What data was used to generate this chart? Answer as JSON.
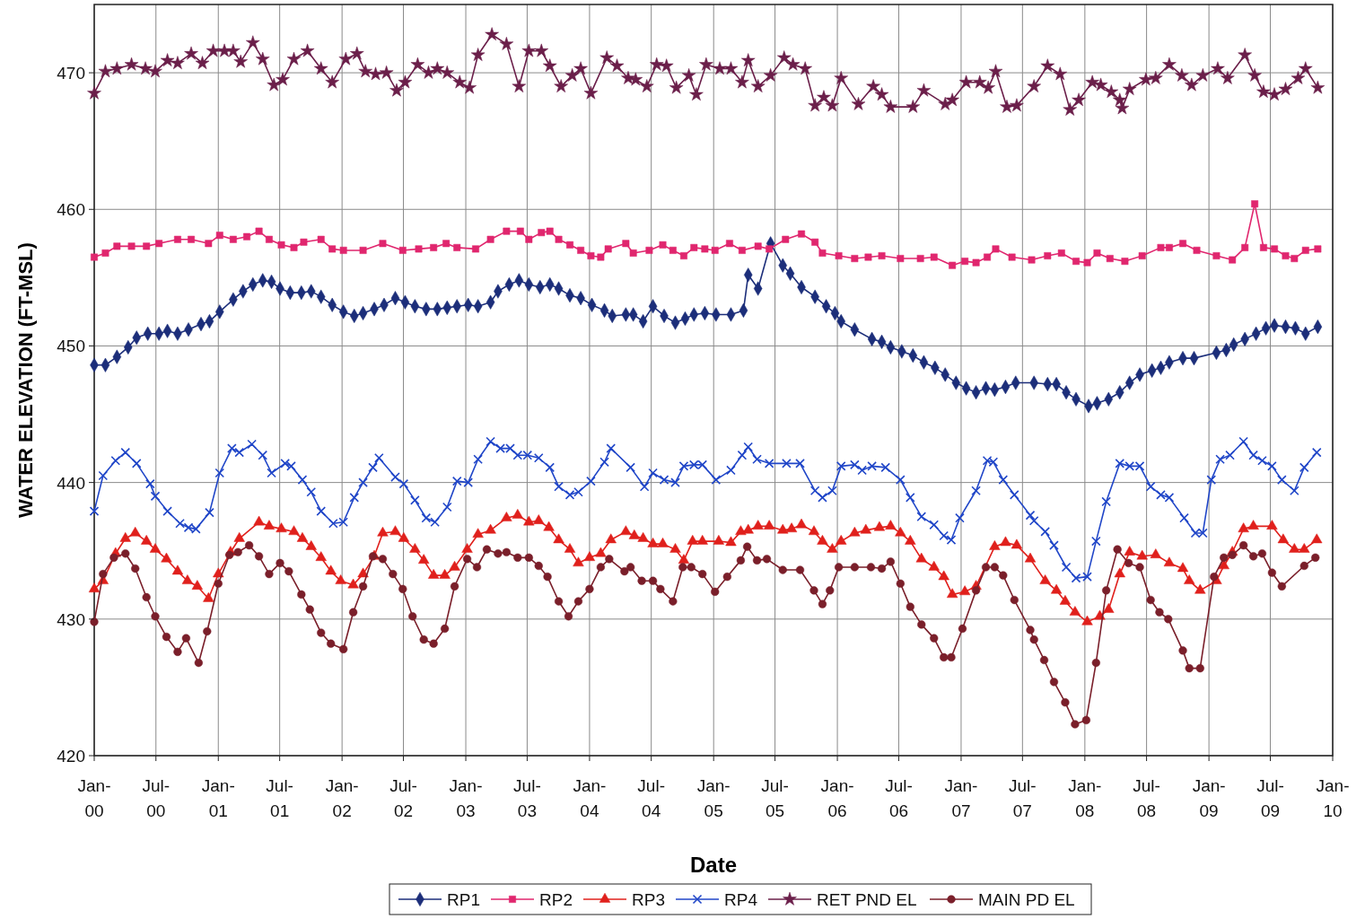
{
  "chart_data": {
    "type": "line",
    "xlabel": "Date",
    "ylabel": "WATER ELEVATION (FT-MSL)",
    "xlim": [
      "2000-01-01",
      "2010-01-01"
    ],
    "ylim": [
      420,
      475
    ],
    "xticks": [
      {
        "value": "2000-01-01",
        "label": "Jan-00"
      },
      {
        "value": "2000-07-01",
        "label": "Jul-00"
      },
      {
        "value": "2001-01-01",
        "label": "Jan-01"
      },
      {
        "value": "2001-07-01",
        "label": "Jul-01"
      },
      {
        "value": "2002-01-01",
        "label": "Jan-02"
      },
      {
        "value": "2002-07-01",
        "label": "Jul-02"
      },
      {
        "value": "2003-01-01",
        "label": "Jan-03"
      },
      {
        "value": "2003-07-01",
        "label": "Jul-03"
      },
      {
        "value": "2004-01-01",
        "label": "Jan-04"
      },
      {
        "value": "2004-07-01",
        "label": "Jul-04"
      },
      {
        "value": "2005-01-01",
        "label": "Jan-05"
      },
      {
        "value": "2005-07-01",
        "label": "Jul-05"
      },
      {
        "value": "2006-01-01",
        "label": "Jan-06"
      },
      {
        "value": "2006-07-01",
        "label": "Jul-06"
      },
      {
        "value": "2007-01-01",
        "label": "Jan-07"
      },
      {
        "value": "2007-07-01",
        "label": "Jul-07"
      },
      {
        "value": "2008-01-01",
        "label": "Jan-08"
      },
      {
        "value": "2008-07-01",
        "label": "Jul-08"
      },
      {
        "value": "2009-01-01",
        "label": "Jan-09"
      },
      {
        "value": "2009-07-01",
        "label": "Jul-09"
      },
      {
        "value": "2010-01-01",
        "label": "Jan-10"
      }
    ],
    "yticks": [
      420,
      430,
      440,
      450,
      460,
      470
    ],
    "grid": true,
    "legend": "bottom",
    "line_style": "solid",
    "series": [
      {
        "name": "RP1",
        "color": "#1c2e7a",
        "marker": "diamond",
        "x": [
          "2000-01-01",
          "2000-02-03",
          "2000-03-08",
          "2000-04-10",
          "2000-05-05",
          "2000-06-07",
          "2000-07-10",
          "2000-08-04",
          "2000-09-03",
          "2000-10-05",
          "2000-11-11",
          "2000-12-06",
          "2001-01-05",
          "2001-02-14",
          "2001-03-15",
          "2001-04-13",
          "2001-05-12",
          "2001-06-07",
          "2001-07-02",
          "2001-08-01",
          "2001-09-03",
          "2001-10-02",
          "2001-10-31",
          "2001-12-03",
          "2002-01-05",
          "2002-02-06",
          "2002-03-04",
          "2002-04-06",
          "2002-05-05",
          "2002-06-07",
          "2002-07-06",
          "2002-08-04",
          "2002-09-06",
          "2002-10-09",
          "2002-11-07",
          "2002-12-06",
          "2003-01-08",
          "2003-02-06",
          "2003-03-15",
          "2003-04-06",
          "2003-05-09",
          "2003-06-07",
          "2003-07-06",
          "2003-08-08",
          "2003-09-06",
          "2003-10-02",
          "2003-11-04",
          "2003-12-06",
          "2004-01-08",
          "2004-02-14",
          "2004-03-08",
          "2004-04-17",
          "2004-05-09",
          "2004-06-07",
          "2004-07-06",
          "2004-08-08",
          "2004-09-10",
          "2004-10-09",
          "2004-11-04",
          "2004-12-06",
          "2005-01-08",
          "2005-02-21",
          "2005-03-30",
          "2005-04-13",
          "2005-05-12",
          "2005-06-18",
          "2005-07-24",
          "2005-08-15",
          "2005-09-17",
          "2005-10-27",
          "2005-11-29",
          "2005-12-25",
          "2006-01-12",
          "2006-02-21",
          "2006-04-13",
          "2006-05-12",
          "2006-06-07",
          "2006-07-10",
          "2006-08-12",
          "2006-09-13",
          "2006-10-16",
          "2006-11-15",
          "2006-12-17",
          "2007-01-16",
          "2007-02-14",
          "2007-03-15",
          "2007-04-10",
          "2007-05-12",
          "2007-06-11",
          "2007-08-04",
          "2007-09-13",
          "2007-10-09",
          "2007-11-07",
          "2007-12-06",
          "2008-01-12",
          "2008-02-06",
          "2008-03-11",
          "2008-04-13",
          "2008-05-12",
          "2008-06-11",
          "2008-07-17",
          "2008-08-12",
          "2008-09-06",
          "2008-10-16",
          "2008-11-18",
          "2009-01-23",
          "2009-02-21",
          "2009-03-15",
          "2009-04-17",
          "2009-05-20",
          "2009-06-18",
          "2009-07-13",
          "2009-08-15",
          "2009-09-13",
          "2009-10-13",
          "2009-11-18"
        ],
        "values": [
          448.6,
          448.6,
          449.2,
          449.9,
          450.6,
          450.9,
          450.9,
          451.1,
          450.9,
          451.2,
          451.6,
          451.8,
          452.5,
          453.4,
          454.0,
          454.5,
          454.8,
          454.7,
          454.2,
          453.9,
          453.9,
          454.0,
          453.6,
          453.0,
          452.5,
          452.2,
          452.4,
          452.7,
          453.0,
          453.5,
          453.2,
          452.9,
          452.7,
          452.7,
          452.8,
          452.9,
          453.0,
          452.9,
          453.2,
          454.0,
          454.5,
          454.8,
          454.5,
          454.3,
          454.5,
          454.2,
          453.7,
          453.5,
          453.0,
          452.6,
          452.2,
          452.3,
          452.3,
          451.8,
          452.9,
          452.2,
          451.7,
          452.0,
          452.3,
          452.4,
          452.3,
          452.3,
          452.6,
          455.2,
          454.2,
          457.5,
          455.9,
          455.3,
          454.3,
          453.6,
          452.9,
          452.4,
          451.8,
          451.2,
          450.5,
          450.3,
          449.9,
          449.6,
          449.3,
          448.8,
          448.4,
          447.9,
          447.3,
          446.9,
          446.6,
          446.9,
          446.8,
          447.0,
          447.3,
          447.3,
          447.2,
          447.2,
          446.6,
          446.1,
          445.6,
          445.8,
          446.1,
          446.6,
          447.3,
          447.9,
          448.2,
          448.4,
          448.8,
          449.1,
          449.1,
          449.5,
          449.7,
          450.1,
          450.5,
          450.9,
          451.3,
          451.5,
          451.4,
          451.3,
          450.9,
          451.4
        ]
      },
      {
        "name": "RP2",
        "color": "#e0266e",
        "marker": "square",
        "x": [
          "2000-01-01",
          "2000-02-03",
          "2000-03-08",
          "2000-04-20",
          "2000-06-03",
          "2000-07-10",
          "2000-09-03",
          "2000-10-13",
          "2000-12-03",
          "2001-01-05",
          "2001-02-14",
          "2001-03-26",
          "2001-05-01",
          "2001-05-31",
          "2001-07-06",
          "2001-08-12",
          "2001-09-10",
          "2001-10-31",
          "2001-12-03",
          "2002-01-05",
          "2002-03-04",
          "2002-05-01",
          "2002-06-29",
          "2002-08-15",
          "2002-09-28",
          "2002-11-04",
          "2002-12-06",
          "2003-01-30",
          "2003-03-15",
          "2003-05-01",
          "2003-06-11",
          "2003-07-06",
          "2003-08-12",
          "2003-09-06",
          "2003-10-02",
          "2003-11-04",
          "2003-12-06",
          "2004-01-05",
          "2004-02-03",
          "2004-02-25",
          "2004-04-17",
          "2004-05-09",
          "2004-06-25",
          "2004-08-04",
          "2004-09-03",
          "2004-10-05",
          "2004-11-04",
          "2004-12-06",
          "2005-01-05",
          "2005-02-17",
          "2005-03-26",
          "2005-05-12",
          "2005-06-14",
          "2005-08-01",
          "2005-09-17",
          "2005-10-27",
          "2005-11-18",
          "2006-01-05",
          "2006-02-21",
          "2006-04-02",
          "2006-05-12",
          "2006-07-06",
          "2006-09-03",
          "2006-10-13",
          "2006-12-06",
          "2007-01-12",
          "2007-02-14",
          "2007-03-19",
          "2007-04-13",
          "2007-05-31",
          "2007-07-28",
          "2007-09-13",
          "2007-10-24",
          "2007-12-06",
          "2008-01-08",
          "2008-02-06",
          "2008-03-15",
          "2008-04-28",
          "2008-06-18",
          "2008-08-12",
          "2008-09-06",
          "2008-10-16",
          "2008-11-26",
          "2009-01-23",
          "2009-03-11",
          "2009-04-17",
          "2009-05-16",
          "2009-06-11",
          "2009-07-13",
          "2009-08-15",
          "2009-09-10",
          "2009-10-13",
          "2009-11-18"
        ],
        "values": [
          456.5,
          456.8,
          457.3,
          457.3,
          457.3,
          457.5,
          457.8,
          457.8,
          457.5,
          458.1,
          457.8,
          458.0,
          458.4,
          457.8,
          457.4,
          457.2,
          457.6,
          457.8,
          457.1,
          457.0,
          457.0,
          457.5,
          457.0,
          457.1,
          457.2,
          457.5,
          457.2,
          457.1,
          457.8,
          458.4,
          458.4,
          457.8,
          458.3,
          458.4,
          457.8,
          457.4,
          457.0,
          456.6,
          456.5,
          457.1,
          457.5,
          456.8,
          457.0,
          457.4,
          457.0,
          456.6,
          457.2,
          457.1,
          457.0,
          457.5,
          457.0,
          457.3,
          457.1,
          457.8,
          458.2,
          457.6,
          456.8,
          456.6,
          456.4,
          456.5,
          456.6,
          456.4,
          456.4,
          456.5,
          455.9,
          456.2,
          456.1,
          456.5,
          457.1,
          456.5,
          456.3,
          456.6,
          456.8,
          456.2,
          456.1,
          456.8,
          456.4,
          456.2,
          456.6,
          457.2,
          457.2,
          457.5,
          457.0,
          456.6,
          456.3,
          457.2,
          460.4,
          457.2,
          457.1,
          456.6,
          456.4,
          457.0,
          457.1
        ]
      },
      {
        "name": "RP3",
        "color": "#e0201c",
        "marker": "triangle",
        "x": [
          "2000-01-01",
          "2000-01-27",
          "2000-03-04",
          "2000-04-02",
          "2000-05-01",
          "2000-06-03",
          "2000-06-29",
          "2000-08-01",
          "2000-09-03",
          "2000-10-02",
          "2000-10-31",
          "2000-12-03",
          "2001-01-01",
          "2001-02-06",
          "2001-03-04",
          "2001-05-01",
          "2001-05-31",
          "2001-07-06",
          "2001-08-12",
          "2001-09-06",
          "2001-10-02",
          "2001-10-31",
          "2001-11-29",
          "2001-12-28",
          "2002-02-03",
          "2002-03-04",
          "2002-04-06",
          "2002-05-01",
          "2002-06-07",
          "2002-07-02",
          "2002-08-04",
          "2002-08-30",
          "2002-09-28",
          "2002-10-31",
          "2002-11-29",
          "2003-01-05",
          "2003-02-06",
          "2003-03-15",
          "2003-05-01",
          "2003-06-03",
          "2003-07-06",
          "2003-08-04",
          "2003-09-03",
          "2003-10-02",
          "2003-11-04",
          "2003-11-29",
          "2004-01-01",
          "2004-02-03",
          "2004-03-04",
          "2004-04-17",
          "2004-05-12",
          "2004-06-07",
          "2004-07-06",
          "2004-08-04",
          "2004-09-10",
          "2004-10-05",
          "2004-10-31",
          "2004-11-29",
          "2005-01-16",
          "2005-02-21",
          "2005-03-22",
          "2005-04-13",
          "2005-05-12",
          "2005-06-14",
          "2005-07-24",
          "2005-08-19",
          "2005-09-17",
          "2005-10-24",
          "2005-11-18",
          "2005-12-17",
          "2006-01-12",
          "2006-02-21",
          "2006-03-26",
          "2006-05-05",
          "2006-06-07",
          "2006-07-06",
          "2006-08-04",
          "2006-09-06",
          "2006-10-13",
          "2006-11-11",
          "2006-12-06",
          "2007-01-12",
          "2007-02-14",
          "2007-04-10",
          "2007-05-12",
          "2007-06-14",
          "2007-07-24",
          "2007-09-06",
          "2007-10-09",
          "2007-11-04",
          "2007-12-03",
          "2008-01-08",
          "2008-02-14",
          "2008-03-11",
          "2008-04-13",
          "2008-05-12",
          "2008-06-18",
          "2008-07-28",
          "2008-09-06",
          "2008-10-16",
          "2008-11-04",
          "2008-12-06",
          "2009-01-23",
          "2009-02-14",
          "2009-03-11",
          "2009-04-13",
          "2009-05-12",
          "2009-07-06",
          "2009-08-08",
          "2009-09-10",
          "2009-10-09",
          "2009-11-15"
        ],
        "values": [
          432.2,
          432.8,
          434.8,
          435.9,
          436.3,
          435.7,
          435.1,
          434.4,
          433.5,
          432.8,
          432.4,
          431.5,
          433.3,
          434.9,
          435.9,
          437.1,
          436.8,
          436.6,
          436.4,
          435.9,
          435.3,
          434.5,
          433.5,
          432.8,
          432.5,
          433.3,
          434.6,
          436.3,
          436.4,
          435.9,
          435.1,
          434.3,
          433.2,
          433.2,
          433.8,
          435.1,
          436.2,
          436.5,
          437.4,
          437.6,
          437.1,
          437.2,
          436.7,
          435.8,
          435.1,
          434.1,
          434.5,
          434.8,
          435.8,
          436.4,
          436.1,
          435.9,
          435.5,
          435.5,
          435.1,
          434.3,
          435.7,
          435.7,
          435.7,
          435.6,
          436.4,
          436.5,
          436.8,
          436.8,
          436.5,
          436.6,
          436.9,
          436.4,
          435.7,
          435.1,
          435.7,
          436.3,
          436.5,
          436.7,
          436.8,
          436.3,
          435.7,
          434.4,
          433.8,
          433.1,
          431.8,
          432.0,
          432.4,
          435.3,
          435.6,
          435.4,
          434.4,
          432.8,
          432.1,
          431.3,
          430.5,
          429.8,
          430.2,
          430.7,
          433.3,
          434.9,
          434.6,
          434.7,
          434.1,
          433.7,
          432.8,
          432.1,
          432.8,
          433.9,
          434.9,
          436.6,
          436.8,
          436.8,
          435.8,
          435.1,
          435.1,
          435.8
        ]
      },
      {
        "name": "RP4",
        "color": "#2046c8",
        "marker": "cross",
        "x": [
          "2000-01-01",
          "2000-01-27",
          "2000-03-04",
          "2000-04-02",
          "2000-05-05",
          "2000-06-14",
          "2000-06-29",
          "2000-08-04",
          "2000-09-10",
          "2000-10-05",
          "2000-10-27",
          "2000-12-06",
          "2001-01-05",
          "2001-02-10",
          "2001-03-04",
          "2001-04-10",
          "2001-05-12",
          "2001-06-07",
          "2001-07-17",
          "2001-08-04",
          "2001-09-06",
          "2001-10-02",
          "2001-10-31",
          "2001-12-06",
          "2002-01-05",
          "2002-02-06",
          "2002-03-04",
          "2002-04-02",
          "2002-04-20",
          "2002-06-07",
          "2002-07-02",
          "2002-08-04",
          "2002-09-06",
          "2002-10-02",
          "2002-11-07",
          "2002-12-06",
          "2003-01-08",
          "2003-02-06",
          "2003-03-15",
          "2003-04-13",
          "2003-05-12",
          "2003-06-03",
          "2003-07-02",
          "2003-08-04",
          "2003-09-06",
          "2003-10-02",
          "2003-11-04",
          "2003-11-29",
          "2004-01-05",
          "2004-02-14",
          "2004-03-04",
          "2004-05-01",
          "2004-06-11",
          "2004-07-06",
          "2004-08-08",
          "2004-09-10",
          "2004-10-05",
          "2004-11-04",
          "2004-11-29",
          "2005-01-08",
          "2005-02-21",
          "2005-03-26",
          "2005-04-13",
          "2005-05-09",
          "2005-06-14",
          "2005-08-04",
          "2005-09-13",
          "2005-10-27",
          "2005-11-18",
          "2005-12-17",
          "2006-01-12",
          "2006-02-21",
          "2006-03-15",
          "2006-04-13",
          "2006-05-23",
          "2006-07-06",
          "2006-08-04",
          "2006-09-06",
          "2006-10-13",
          "2006-11-11",
          "2006-12-03",
          "2006-12-28",
          "2007-02-14",
          "2007-03-19",
          "2007-04-06",
          "2007-05-05",
          "2007-06-07",
          "2007-07-24",
          "2007-08-04",
          "2007-09-06",
          "2007-10-02",
          "2007-11-07",
          "2007-12-06",
          "2008-01-08",
          "2008-02-03",
          "2008-03-04",
          "2008-04-13",
          "2008-05-12",
          "2008-06-11",
          "2008-07-13",
          "2008-08-12",
          "2008-09-06",
          "2008-10-20",
          "2008-11-22",
          "2008-12-14",
          "2009-01-08",
          "2009-02-03",
          "2009-03-04",
          "2009-04-13",
          "2009-05-12",
          "2009-06-07",
          "2009-07-06",
          "2009-08-04",
          "2009-09-10",
          "2009-10-09",
          "2009-11-15"
        ],
        "values": [
          437.9,
          440.5,
          441.6,
          442.2,
          441.4,
          439.9,
          439.0,
          437.9,
          437.0,
          436.7,
          436.6,
          437.8,
          440.7,
          442.5,
          442.2,
          442.8,
          442.0,
          440.7,
          441.4,
          441.2,
          440.2,
          439.3,
          437.9,
          437.0,
          437.1,
          438.9,
          440.0,
          441.1,
          441.8,
          440.4,
          439.9,
          438.7,
          437.4,
          437.1,
          438.2,
          440.1,
          440.0,
          441.7,
          443.0,
          442.5,
          442.5,
          442.0,
          442.0,
          441.8,
          441.1,
          439.7,
          439.1,
          439.3,
          440.1,
          441.5,
          442.5,
          441.1,
          439.7,
          440.7,
          440.2,
          440.0,
          441.2,
          441.3,
          441.3,
          440.2,
          440.9,
          442.0,
          442.6,
          441.7,
          441.4,
          441.4,
          441.4,
          439.4,
          438.9,
          439.4,
          441.2,
          441.3,
          440.9,
          441.2,
          441.1,
          440.2,
          438.9,
          437.5,
          436.9,
          436.1,
          435.8,
          437.4,
          439.4,
          441.6,
          441.5,
          440.2,
          439.1,
          437.6,
          437.2,
          436.4,
          435.4,
          433.8,
          433.0,
          433.1,
          435.7,
          438.6,
          441.4,
          441.2,
          441.2,
          439.7,
          439.1,
          438.9,
          437.4,
          436.3,
          436.3,
          440.2,
          441.7,
          442.0,
          443.0,
          442.0,
          441.6,
          441.2,
          440.2,
          439.4,
          441.1,
          442.2
        ]
      },
      {
        "name": "RET PND EL",
        "color": "#6b1f4a",
        "marker": "star",
        "x": [
          "2000-01-01",
          "2000-02-03",
          "2000-03-08",
          "2000-04-20",
          "2000-05-31",
          "2000-06-29",
          "2000-08-04",
          "2000-09-03",
          "2000-10-13",
          "2000-11-15",
          "2000-12-17",
          "2001-01-19",
          "2001-02-14",
          "2001-03-08",
          "2001-04-13",
          "2001-05-12",
          "2001-06-14",
          "2001-07-10",
          "2001-08-12",
          "2001-09-21",
          "2001-10-31",
          "2001-12-03",
          "2002-01-12",
          "2002-02-14",
          "2002-03-11",
          "2002-04-10",
          "2002-05-12",
          "2002-06-11",
          "2002-07-06",
          "2002-08-12",
          "2002-09-13",
          "2002-10-09",
          "2002-11-07",
          "2002-12-14",
          "2003-01-12",
          "2003-02-06",
          "2003-03-19",
          "2003-05-01",
          "2003-06-07",
          "2003-07-06",
          "2003-08-12",
          "2003-09-06",
          "2003-10-09",
          "2003-11-11",
          "2003-12-06",
          "2004-01-05",
          "2004-02-21",
          "2004-03-22",
          "2004-04-24",
          "2004-05-16",
          "2004-06-18",
          "2004-07-17",
          "2004-08-15",
          "2004-09-13",
          "2004-10-20",
          "2004-11-11",
          "2004-12-10",
          "2005-01-19",
          "2005-02-21",
          "2005-03-26",
          "2005-04-13",
          "2005-05-12",
          "2005-06-18",
          "2005-07-28",
          "2005-08-23",
          "2005-09-28",
          "2005-10-27",
          "2005-11-22",
          "2005-12-17",
          "2006-01-12",
          "2006-03-04",
          "2006-04-17",
          "2006-05-12",
          "2006-06-07",
          "2006-08-12",
          "2006-09-13",
          "2006-11-15",
          "2006-12-06",
          "2007-01-16",
          "2007-02-25",
          "2007-03-22",
          "2007-04-13",
          "2007-05-16",
          "2007-06-14",
          "2007-08-04",
          "2007-09-13",
          "2007-10-20",
          "2007-11-18",
          "2007-12-14",
          "2008-01-23",
          "2008-02-17",
          "2008-03-19",
          "2008-04-13",
          "2008-04-20",
          "2008-05-12",
          "2008-06-29",
          "2008-07-28",
          "2008-09-06",
          "2008-10-13",
          "2008-11-11",
          "2008-12-14",
          "2009-01-27",
          "2009-02-25",
          "2009-04-17",
          "2009-05-16",
          "2009-06-11",
          "2009-07-13",
          "2009-08-15",
          "2009-09-21",
          "2009-10-13",
          "2009-11-18"
        ],
        "values": [
          468.5,
          470.1,
          470.3,
          470.6,
          470.3,
          470.1,
          470.9,
          470.7,
          471.4,
          470.7,
          471.6,
          471.6,
          471.6,
          470.8,
          472.2,
          471.0,
          469.1,
          469.5,
          471.0,
          471.6,
          470.3,
          469.3,
          471.0,
          471.4,
          470.1,
          469.9,
          470.0,
          468.7,
          469.3,
          470.6,
          470.0,
          470.3,
          470.0,
          469.3,
          468.9,
          471.3,
          472.8,
          472.1,
          469.0,
          471.6,
          471.6,
          470.5,
          469.0,
          469.8,
          470.3,
          468.5,
          471.1,
          470.5,
          469.6,
          469.5,
          469.0,
          470.6,
          470.5,
          468.9,
          469.8,
          468.4,
          470.6,
          470.3,
          470.3,
          469.3,
          470.9,
          469.0,
          469.8,
          471.1,
          470.6,
          470.3,
          467.6,
          468.2,
          467.6,
          469.6,
          467.7,
          469.0,
          468.4,
          467.5,
          467.5,
          468.7,
          467.7,
          468.0,
          469.3,
          469.3,
          468.9,
          470.1,
          467.5,
          467.6,
          469.0,
          470.5,
          469.9,
          467.3,
          468.0,
          469.3,
          469.1,
          468.6,
          468.0,
          467.4,
          468.8,
          469.5,
          469.6,
          470.6,
          469.8,
          469.1,
          469.8,
          470.3,
          469.6,
          471.3,
          469.8,
          468.6,
          468.4,
          468.8,
          469.6,
          470.3,
          468.9
        ]
      },
      {
        "name": "MAIN PD EL",
        "color": "#7a1f2a",
        "marker": "circle",
        "x": [
          "2000-01-01",
          "2000-01-27",
          "2000-02-28",
          "2000-04-02",
          "2000-05-01",
          "2000-06-03",
          "2000-06-29",
          "2000-08-01",
          "2000-09-03",
          "2000-09-28",
          "2000-11-04",
          "2000-11-29",
          "2001-01-01",
          "2001-02-03",
          "2001-02-28",
          "2001-04-02",
          "2001-05-01",
          "2001-05-31",
          "2001-07-02",
          "2001-07-28",
          "2001-09-03",
          "2001-09-28",
          "2001-10-31",
          "2001-11-29",
          "2002-01-05",
          "2002-02-03",
          "2002-03-04",
          "2002-04-02",
          "2002-05-01",
          "2002-05-31",
          "2002-06-29",
          "2002-07-28",
          "2002-08-30",
          "2002-09-28",
          "2002-10-31",
          "2002-11-29",
          "2003-01-05",
          "2003-02-03",
          "2003-03-04",
          "2003-04-06",
          "2003-05-01",
          "2003-06-03",
          "2003-07-06",
          "2003-08-04",
          "2003-08-30",
          "2003-10-02",
          "2003-10-31",
          "2003-11-29",
          "2004-01-01",
          "2004-02-03",
          "2004-02-28",
          "2004-04-13",
          "2004-05-01",
          "2004-06-03",
          "2004-07-06",
          "2004-07-28",
          "2004-09-03",
          "2004-10-02",
          "2004-10-27",
          "2004-11-29",
          "2005-01-05",
          "2005-02-10",
          "2005-03-22",
          "2005-04-10",
          "2005-05-09",
          "2005-06-07",
          "2005-07-24",
          "2005-09-13",
          "2005-10-24",
          "2005-11-18",
          "2005-12-10",
          "2006-01-05",
          "2006-02-21",
          "2006-04-10",
          "2006-05-12",
          "2006-06-07",
          "2006-07-06",
          "2006-08-04",
          "2006-09-06",
          "2006-10-13",
          "2006-11-11",
          "2006-12-03",
          "2007-01-05",
          "2007-02-14",
          "2007-03-15",
          "2007-04-10",
          "2007-05-05",
          "2007-06-07",
          "2007-07-24",
          "2007-08-04",
          "2007-09-03",
          "2007-10-02",
          "2007-11-04",
          "2007-12-03",
          "2008-01-05",
          "2008-02-03",
          "2008-03-04",
          "2008-04-06",
          "2008-05-09",
          "2008-06-11",
          "2008-07-13",
          "2008-08-08",
          "2008-09-03",
          "2008-10-16",
          "2008-11-04",
          "2008-12-06",
          "2009-01-16",
          "2009-02-14",
          "2009-03-11",
          "2009-04-13",
          "2009-05-12",
          "2009-06-07",
          "2009-07-06",
          "2009-08-04",
          "2009-10-09",
          "2009-11-11"
        ],
        "values": [
          429.8,
          433.3,
          434.5,
          434.8,
          433.7,
          431.6,
          430.2,
          428.7,
          427.6,
          428.6,
          426.8,
          429.1,
          432.6,
          434.7,
          434.9,
          435.4,
          434.6,
          433.3,
          434.1,
          433.5,
          431.8,
          430.7,
          429.0,
          428.2,
          427.8,
          430.5,
          432.4,
          434.6,
          434.4,
          433.3,
          432.2,
          430.2,
          428.5,
          428.2,
          429.3,
          432.4,
          434.4,
          433.8,
          435.1,
          434.8,
          434.9,
          434.5,
          434.5,
          433.9,
          433.1,
          431.3,
          430.2,
          431.3,
          432.2,
          433.8,
          434.4,
          433.5,
          433.8,
          432.8,
          432.8,
          432.2,
          431.3,
          433.8,
          433.8,
          433.3,
          432.0,
          433.1,
          434.3,
          435.3,
          434.3,
          434.4,
          433.6,
          433.6,
          432.1,
          431.1,
          432.1,
          433.8,
          433.8,
          433.8,
          433.7,
          434.2,
          432.6,
          430.9,
          429.6,
          428.6,
          427.2,
          427.2,
          429.3,
          432.1,
          433.8,
          433.8,
          433.2,
          431.4,
          429.2,
          428.5,
          427.0,
          425.4,
          423.9,
          422.3,
          422.6,
          426.8,
          432.1,
          435.1,
          434.1,
          433.8,
          431.4,
          430.5,
          430.0,
          427.7,
          426.4,
          426.4,
          433.1,
          434.5,
          434.7,
          435.4,
          434.6,
          434.8,
          433.4,
          432.4,
          433.9,
          434.5
        ]
      }
    ]
  }
}
